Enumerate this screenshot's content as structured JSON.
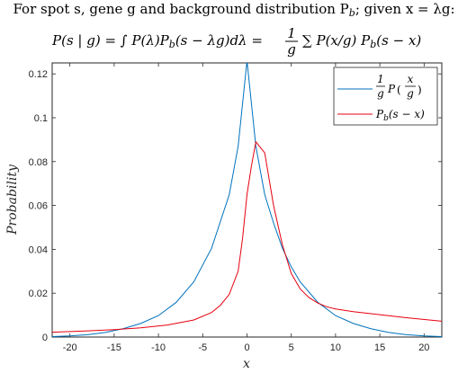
{
  "title": {
    "line1": "For spot s, gene g and background distribution P",
    "line1_sub": "b",
    "line1_rest": "; given x = λg:",
    "line2_lhs": "P(s | g) = ∫ P(λ)P",
    "line2_mid": "(s − λg)dλ = ",
    "line2_rhs": "∑ P(x/g) P",
    "line2_end": "(s − x)"
  },
  "chart_data": {
    "type": "line",
    "xlabel": "x",
    "ylabel": "Probability",
    "xlim": [
      -22,
      22
    ],
    "ylim": [
      0,
      0.125
    ],
    "xticks": [
      -20,
      -15,
      -10,
      -5,
      0,
      5,
      10,
      15,
      20
    ],
    "yticks": [
      0,
      0.02,
      0.04,
      0.06,
      0.08,
      0.1,
      0.12
    ],
    "ytick_labels": [
      "0",
      "0.02",
      "0.04",
      "0.06",
      "0.08",
      "0.1",
      "0.12"
    ],
    "legend_position": "top-right",
    "series": [
      {
        "name": "(1/g) P(x/g)",
        "color": "#0072BD",
        "x": [
          -22,
          -20,
          -18,
          -16,
          -14,
          -12,
          -10,
          -8,
          -6,
          -4,
          -2,
          -1,
          0,
          1,
          2,
          3,
          4,
          5,
          6,
          8,
          10,
          12,
          14,
          16,
          18,
          20,
          22
        ],
        "y": [
          0.0002,
          0.0005,
          0.0011,
          0.0021,
          0.0038,
          0.0062,
          0.0098,
          0.0158,
          0.0252,
          0.0405,
          0.065,
          0.087,
          0.126,
          0.087,
          0.065,
          0.052,
          0.0405,
          0.032,
          0.0252,
          0.0158,
          0.0098,
          0.0062,
          0.0038,
          0.0021,
          0.0011,
          0.0005,
          0.0002
        ]
      },
      {
        "name": "P_b(s − x)",
        "color": "#E6000F",
        "x": [
          -22,
          -18,
          -15,
          -12,
          -9,
          -6,
          -4,
          -3,
          -2,
          -1,
          -0.5,
          0,
          0.5,
          1,
          2,
          3,
          4,
          5,
          6,
          7,
          8,
          9,
          10,
          12,
          15,
          18,
          22
        ],
        "y": [
          0.0022,
          0.0028,
          0.0034,
          0.0042,
          0.0055,
          0.0078,
          0.0112,
          0.0145,
          0.0195,
          0.03,
          0.045,
          0.065,
          0.078,
          0.089,
          0.084,
          0.06,
          0.042,
          0.029,
          0.022,
          0.018,
          0.0155,
          0.0138,
          0.0128,
          0.0116,
          0.0102,
          0.0088,
          0.0072
        ]
      }
    ]
  }
}
